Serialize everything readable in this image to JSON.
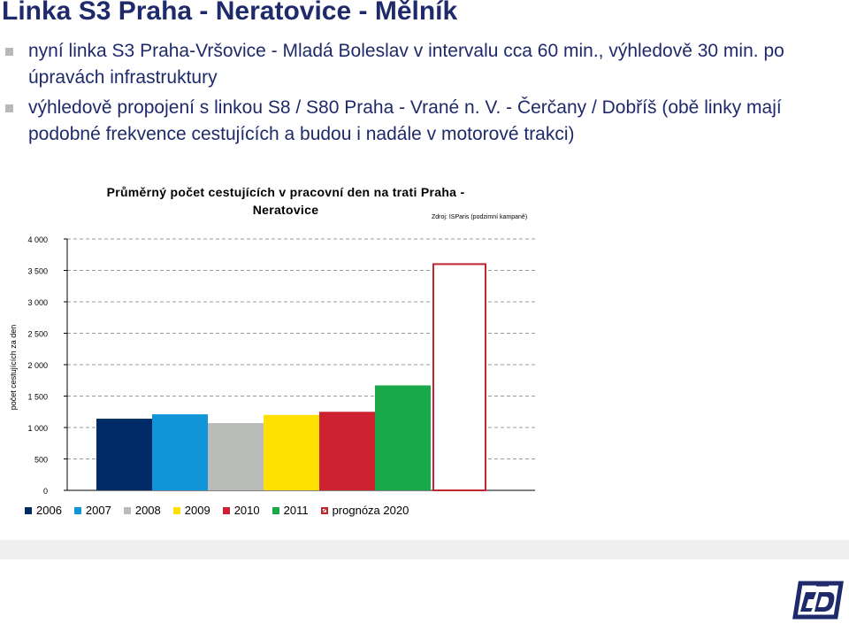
{
  "slide": {
    "title": "Linka S3 Praha - Neratovice - Mělník",
    "bullets": [
      "nyní linka S3 Praha-Vršovice - Mladá Boleslav v intervalu cca 60 min., výhledově 30 min. po úpravách infrastruktury",
      "výhledově propojení s linkou S8 / S80 Praha - Vrané n. V. - Čerčany / Dobříš (obě linky mají podobné frekvence cestujících a budou i nadále v motorové trakci)"
    ]
  },
  "chart_data": {
    "type": "bar",
    "title_line1": "Průměrný počet cestujících v pracovní den na trati Praha -",
    "title_line2": "Neratovice",
    "source": "Zdroj: ISParis (podzimní kampaně)",
    "ylabel": "počet cestujících za den",
    "ylim": [
      0,
      4000
    ],
    "yticks": [
      "4 000",
      "3 500",
      "3 000",
      "2 500",
      "2 000",
      "1 500",
      "1 000",
      "500",
      "0"
    ],
    "grid": true,
    "legend_position": "bottom",
    "series": [
      {
        "name": "2006",
        "value": 1140,
        "color": "#002b66",
        "outline": false
      },
      {
        "name": "2007",
        "value": 1210,
        "color": "#1095d9",
        "outline": false
      },
      {
        "name": "2008",
        "value": 1070,
        "color": "#b9bbb9",
        "outline": false
      },
      {
        "name": "2009",
        "value": 1200,
        "color": "#ffe000",
        "outline": false
      },
      {
        "name": "2010",
        "value": 1250,
        "color": "#cc2231",
        "outline": false
      },
      {
        "name": "2011",
        "value": 1670,
        "color": "#1aa94a",
        "outline": false
      },
      {
        "name": "prognóza 2020",
        "value": 3600,
        "color": "#c0272d",
        "outline": true
      }
    ]
  },
  "colors": {
    "title": "#1f2a6b",
    "band": "#efefef",
    "logo": "#1f2a6b"
  },
  "logo": {
    "icon": "cd-logo-icon"
  }
}
